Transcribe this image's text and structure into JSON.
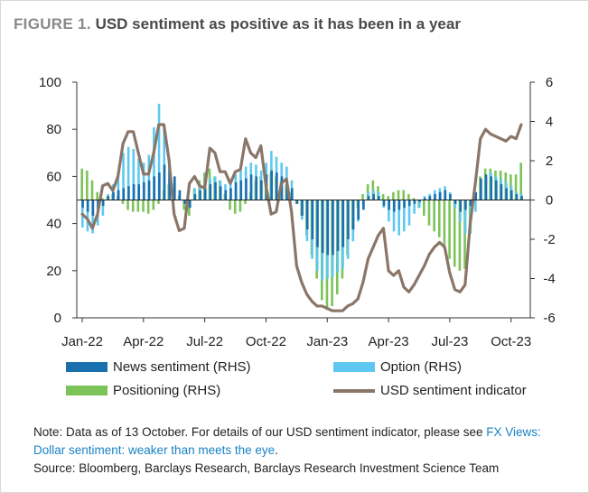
{
  "figure": {
    "label": "FIGURE 1.",
    "title": "USD sentiment as positive as it has been in a year"
  },
  "notes": {
    "note_prefix": "Note: Data as of 13 October. For details of our USD sentiment indicator, please see ",
    "note_link": "FX Views: Dollar sentiment: weaker than meets the eye",
    "note_suffix": ".",
    "source": "Source: Bloomberg, Barclays Research, Barclays Research Investment Science Team"
  },
  "colors": {
    "news": "#1a6fae",
    "option": "#5ec8f0",
    "positioning": "#7cc35a",
    "indicator": "#8a7668",
    "axis": "#333333"
  },
  "chart_data": {
    "type": "bar",
    "title": "USD sentiment as positive as it has been in a year",
    "x_tick_labels": [
      "Jan-22",
      "Apr-22",
      "Jul-22",
      "Oct-22",
      "Jan-23",
      "Apr-23",
      "Jul-23",
      "Oct-23"
    ],
    "x_tick_months": [
      0,
      3,
      6,
      9,
      12,
      15,
      18,
      21
    ],
    "x_months": [
      0,
      0.25,
      0.5,
      0.75,
      1,
      1.25,
      1.5,
      1.75,
      2,
      2.25,
      2.5,
      2.75,
      3,
      3.25,
      3.5,
      3.75,
      4,
      4.25,
      4.5,
      4.75,
      5,
      5.25,
      5.5,
      5.75,
      6,
      6.25,
      6.5,
      6.75,
      7,
      7.25,
      7.5,
      7.75,
      8,
      8.25,
      8.5,
      8.75,
      9,
      9.25,
      9.5,
      9.75,
      10,
      10.25,
      10.5,
      10.75,
      11,
      11.25,
      11.5,
      11.75,
      12,
      12.25,
      12.5,
      12.75,
      13,
      13.25,
      13.5,
      13.75,
      14,
      14.25,
      14.5,
      14.75,
      15,
      15.25,
      15.5,
      15.75,
      16,
      16.25,
      16.5,
      16.75,
      17,
      17.25,
      17.5,
      17.75,
      18,
      18.25,
      18.5,
      18.75,
      19,
      19.25,
      19.5,
      19.75,
      20,
      20.25,
      20.5,
      20.75,
      21,
      21.25,
      21.5
    ],
    "left_axis": {
      "ylim": [
        0,
        100
      ],
      "ticks": [
        0,
        20,
        40,
        60,
        80,
        100
      ]
    },
    "right_axis": {
      "ylim": [
        -6,
        6
      ],
      "ticks": [
        -6,
        -4,
        -2,
        0,
        2,
        4,
        6
      ]
    },
    "legend": [
      "News sentiment (RHS)",
      "Option (RHS)",
      "Positioning (RHS)",
      "USD sentiment indicator"
    ],
    "series": [
      {
        "name": "News sentiment (RHS)",
        "kind": "bar",
        "axis": "right",
        "values": [
          -0.4,
          -0.6,
          -0.8,
          -0.5,
          -0.3,
          0.2,
          0.4,
          0.5,
          0.6,
          0.7,
          0.8,
          0.8,
          0.9,
          1.0,
          1.2,
          1.4,
          1.8,
          2.0,
          1.2,
          0.5,
          -0.2,
          -0.4,
          0.3,
          0.5,
          0.6,
          0.8,
          0.9,
          0.7,
          0.5,
          0.6,
          0.9,
          1.0,
          1.1,
          1.3,
          1.2,
          1.0,
          1.3,
          1.5,
          1.4,
          1.2,
          1.0,
          0.6,
          -0.2,
          -0.8,
          -1.5,
          -2.0,
          -2.4,
          -2.7,
          -2.8,
          -2.8,
          -2.6,
          -2.4,
          -2.0,
          -1.5,
          -1.0,
          -0.5,
          0.2,
          0.3,
          0.2,
          -0.3,
          -0.5,
          -0.6,
          -0.5,
          -0.4,
          -0.3,
          -0.2,
          -0.1,
          0.1,
          0.2,
          0.3,
          0.4,
          0.5,
          0.3,
          -0.2,
          -0.6,
          -0.5,
          -0.3,
          0.4,
          1.1,
          1.3,
          1.2,
          1.0,
          0.8,
          0.6,
          0.5,
          0.3,
          0.2
        ]
      },
      {
        "name": "Option (RHS)",
        "kind": "bar",
        "axis": "right",
        "values": [
          -1.4,
          -1.6,
          -1.7,
          -1.3,
          -0.8,
          0.3,
          0.8,
          1.4,
          2.4,
          2.7,
          2.6,
          2.1,
          1.9,
          2.3,
          3.7,
          4.9,
          3.6,
          2.1,
          0.9,
          0.3,
          -0.1,
          -0.3,
          0.6,
          0.8,
          1.0,
          1.1,
          1.2,
          1.0,
          0.8,
          0.9,
          1.3,
          1.5,
          1.7,
          1.9,
          1.8,
          1.5,
          1.9,
          2.5,
          2.2,
          1.9,
          1.7,
          1.0,
          -0.1,
          -1.0,
          -2.1,
          -3.0,
          -3.6,
          -4.1,
          -4.0,
          -3.9,
          -3.7,
          -3.5,
          -3.0,
          -2.1,
          -1.1,
          -0.3,
          0.4,
          0.5,
          0.4,
          -0.4,
          -1.1,
          -1.6,
          -1.8,
          -1.6,
          -1.3,
          -0.7,
          -0.4,
          0.2,
          0.3,
          0.5,
          0.6,
          0.7,
          0.4,
          -0.4,
          -1.1,
          -1.7,
          -1.7,
          -0.6,
          0.6,
          1.3,
          1.4,
          1.2,
          1.1,
          0.9,
          0.7,
          0.4,
          0.3
        ]
      },
      {
        "name": "Positioning (RHS)",
        "kind": "bar",
        "axis": "right",
        "values": [
          1.6,
          1.5,
          1.0,
          0.4,
          0.1,
          0.2,
          0.3,
          0.2,
          -0.2,
          -0.5,
          -0.6,
          -0.6,
          -0.6,
          -0.7,
          -0.5,
          -0.2,
          0.5,
          0.8,
          0.6,
          0.2,
          -0.5,
          -0.8,
          0.6,
          1.0,
          1.4,
          1.6,
          1.2,
          1.0,
          0.3,
          -0.5,
          -0.7,
          -0.6,
          -0.2,
          0.4,
          1.0,
          1.2,
          1.3,
          1.4,
          1.2,
          1.0,
          0.8,
          0.4,
          -0.2,
          -0.8,
          -1.8,
          -2.8,
          -4.0,
          -5.1,
          -5.6,
          -5.4,
          -4.8,
          -4.0,
          -2.8,
          -1.5,
          -0.4,
          0.3,
          0.8,
          1.0,
          0.7,
          0.3,
          0.2,
          0.4,
          0.5,
          0.5,
          0.3,
          0.1,
          -0.4,
          -0.8,
          -1.3,
          -1.6,
          -1.9,
          -2.4,
          -3.0,
          -3.4,
          -3.6,
          -3.5,
          -1.5,
          0.2,
          1.2,
          1.6,
          1.6,
          1.5,
          1.5,
          1.4,
          1.3,
          1.3,
          1.9
        ]
      },
      {
        "name": "USD sentiment indicator",
        "kind": "line",
        "axis": "left",
        "values": [
          44,
          42,
          38,
          44,
          56,
          57,
          54,
          60,
          74,
          79,
          79,
          70,
          61,
          61,
          70,
          82,
          82,
          67,
          44,
          37,
          38,
          57,
          60,
          56,
          55,
          72,
          70,
          62,
          62,
          57,
          62,
          63,
          76,
          70,
          68,
          73,
          56,
          44,
          45,
          57,
          59,
          45,
          22,
          15,
          10,
          7,
          5,
          5,
          4,
          3,
          3,
          3,
          5,
          6,
          8,
          15,
          25,
          30,
          35,
          38,
          20,
          18,
          20,
          13,
          11,
          14,
          18,
          22,
          27,
          30,
          32,
          30,
          19,
          12,
          11,
          14,
          40,
          57,
          76,
          80,
          78,
          77,
          76,
          75,
          77,
          76,
          82
        ]
      }
    ]
  }
}
